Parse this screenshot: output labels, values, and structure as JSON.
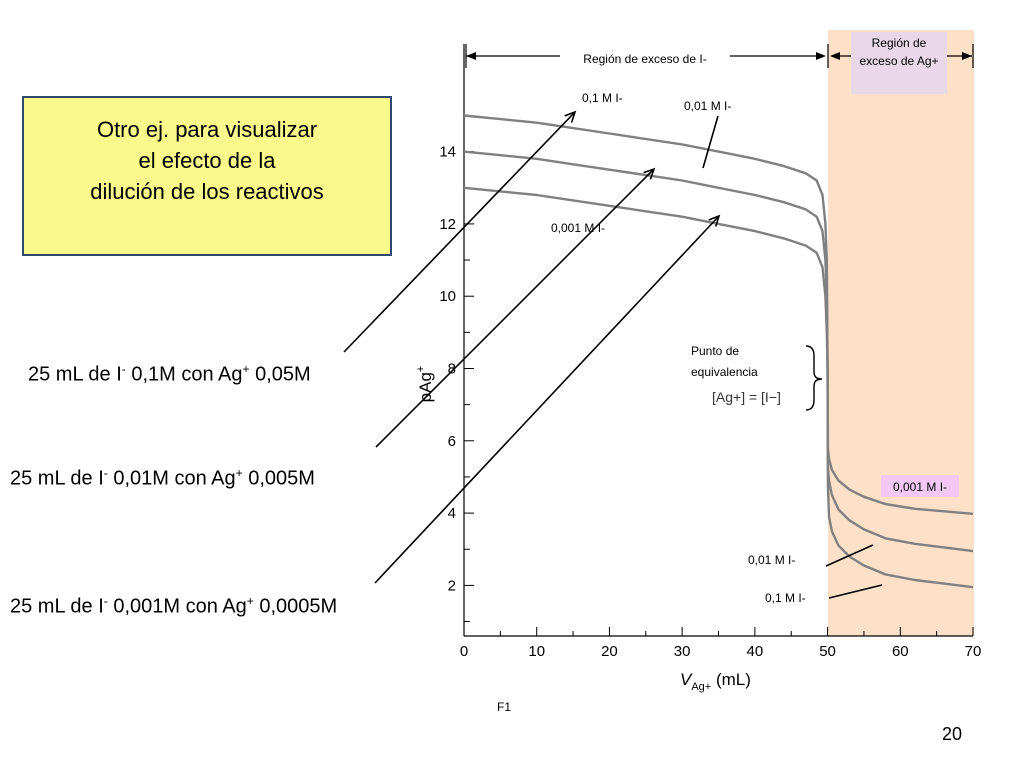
{
  "note": {
    "lines": [
      "Otro ej. para visualizar",
      "el efecto de la",
      "dilución de los reactivos"
    ]
  },
  "conditions": [
    {
      "pre": "25 mL  de I",
      "sup": "-",
      "mid": " 0,1M con Ag",
      "sup2": "+",
      "post": " 0,05M"
    },
    {
      "pre": "25 mL  de I",
      "sup": "-",
      "mid": " 0,01M con Ag",
      "sup2": "+",
      "post": " 0,005M"
    },
    {
      "pre": "25 mL  de I",
      "sup": "-",
      "mid": " 0,001M con Ag",
      "sup2": "+",
      "post": " 0,0005M"
    }
  ],
  "page_number": "20",
  "source_label": "F1",
  "colors": {
    "curve": "#808080",
    "excess_ag_region": "#fce0c8",
    "note_fill": "#fafa8c",
    "note_border": "#2f4a6e",
    "label_pink": "#f4c8f4",
    "label_lavender": "#e8d8e8"
  },
  "chart_data": {
    "type": "line",
    "xlabel": "V_Ag+ (mL)",
    "ylabel": "pAg+",
    "xlim": [
      0,
      70
    ],
    "ylim": [
      0.5,
      16
    ],
    "xticks": [
      0,
      10,
      20,
      30,
      40,
      50,
      60,
      70
    ],
    "yticks": [
      2,
      4,
      6,
      8,
      10,
      12,
      14
    ],
    "grid": false,
    "equivalence_point_x": 50,
    "regions": {
      "excess_i": "Región de exceso de I-",
      "excess_ag": "Región de exceso de Ag+"
    },
    "equivalence_label": {
      "line1": "Punto de",
      "line2": "equivalencia",
      "formula": "[Ag+] = [I−]"
    },
    "series": [
      {
        "name": "0,1 M I-",
        "x": [
          0,
          5,
          10,
          15,
          20,
          25,
          30,
          35,
          40,
          44,
          47,
          48.5,
          49.3,
          49.7,
          49.9,
          50
        ],
        "y": [
          15.0,
          14.9,
          14.8,
          14.65,
          14.5,
          14.35,
          14.2,
          14.0,
          13.8,
          13.6,
          13.4,
          13.2,
          12.8,
          12.0,
          11.0,
          8.0
        ]
      },
      {
        "name": "0,01 M I-",
        "x": [
          0,
          5,
          10,
          15,
          20,
          25,
          30,
          35,
          40,
          44,
          47,
          48.5,
          49.3,
          49.7,
          49.9,
          50
        ],
        "y": [
          14.0,
          13.9,
          13.8,
          13.65,
          13.5,
          13.35,
          13.2,
          13.0,
          12.8,
          12.6,
          12.4,
          12.2,
          11.8,
          11.0,
          10.0,
          8.0
        ]
      },
      {
        "name": "0,001 M I-",
        "x": [
          0,
          5,
          10,
          15,
          20,
          25,
          30,
          35,
          40,
          44,
          47,
          48.5,
          49.3,
          49.7,
          49.9,
          50
        ],
        "y": [
          13.0,
          12.9,
          12.8,
          12.65,
          12.5,
          12.35,
          12.2,
          12.0,
          11.8,
          11.6,
          11.4,
          11.2,
          10.8,
          10.0,
          9.0,
          8.0
        ]
      },
      {
        "name": "0,1 M I- (exceso de Ag+)",
        "x": [
          50,
          50.05,
          50.2,
          50.6,
          51.5,
          53,
          55,
          58,
          62,
          66,
          70
        ],
        "y": [
          8.0,
          4.8,
          3.9,
          3.5,
          3.1,
          2.8,
          2.55,
          2.3,
          2.15,
          2.05,
          1.95
        ]
      },
      {
        "name": "0,01 M I- (exceso de Ag+)",
        "x": [
          50,
          50.05,
          50.2,
          50.6,
          51.5,
          53,
          55,
          58,
          62,
          66,
          70
        ],
        "y": [
          8.0,
          5.3,
          4.9,
          4.5,
          4.1,
          3.8,
          3.55,
          3.3,
          3.15,
          3.05,
          2.95
        ]
      },
      {
        "name": "0,001 M I- (exceso de Ag+)",
        "x": [
          50,
          50.05,
          50.2,
          50.6,
          51.5,
          53,
          55,
          58,
          62,
          66,
          70
        ],
        "y": [
          8.0,
          5.8,
          5.5,
          5.2,
          4.9,
          4.65,
          4.45,
          4.25,
          4.12,
          4.05,
          3.98
        ]
      }
    ],
    "annotations": [
      {
        "text": "0,1 M I-"
      },
      {
        "text": "0,01 M I-"
      },
      {
        "text": "0,001 M I-"
      },
      {
        "text": "0,001 M I-"
      },
      {
        "text": "0,01 M I-"
      },
      {
        "text": "0,1 M I-"
      }
    ]
  }
}
